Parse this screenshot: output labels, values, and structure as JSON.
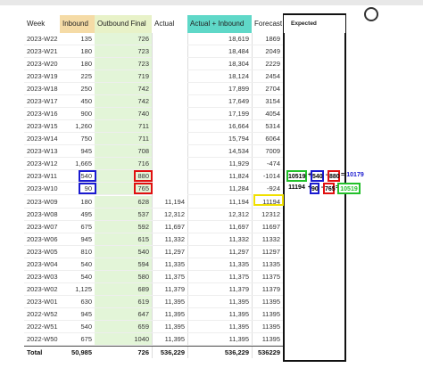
{
  "table": {
    "headers": [
      "Week",
      "Inbound",
      "Outbound Final",
      "Actual",
      "Actual + Inbound",
      "Forecast",
      "Expected"
    ],
    "rows": [
      [
        "2023-W22",
        "135",
        "726",
        null,
        "18,619",
        "1869"
      ],
      [
        "2023-W21",
        "180",
        "723",
        null,
        "18,484",
        "2049"
      ],
      [
        "2023-W20",
        "180",
        "723",
        null,
        "18,304",
        "2229"
      ],
      [
        "2023-W19",
        "225",
        "719",
        null,
        "18,124",
        "2454"
      ],
      [
        "2023-W18",
        "250",
        "742",
        null,
        "17,899",
        "2704"
      ],
      [
        "2023-W17",
        "450",
        "742",
        null,
        "17,649",
        "3154"
      ],
      [
        "2023-W16",
        "900",
        "740",
        null,
        "17,199",
        "4054"
      ],
      [
        "2023-W15",
        "1,260",
        "711",
        null,
        "16,664",
        "5314"
      ],
      [
        "2023-W14",
        "750",
        "711",
        null,
        "15,794",
        "6064"
      ],
      [
        "2023-W13",
        "945",
        "708",
        null,
        "14,534",
        "7009"
      ],
      [
        "2023-W12",
        "1,665",
        "716",
        null,
        "11,929",
        "-474"
      ],
      [
        "2023-W11",
        "540",
        "880",
        null,
        "11,824",
        "-1014"
      ],
      [
        "2023-W10",
        "90",
        "765",
        null,
        "11,284",
        "-924"
      ],
      [
        "2023-W09",
        "180",
        "628",
        "11,194",
        "11,194",
        "11194"
      ],
      [
        "2023-W08",
        "495",
        "537",
        "12,312",
        "12,312",
        "12312"
      ],
      [
        "2023-W07",
        "675",
        "592",
        "11,697",
        "11,697",
        "11697"
      ],
      [
        "2023-W06",
        "945",
        "615",
        "11,332",
        "11,332",
        "11332"
      ],
      [
        "2023-W05",
        "810",
        "540",
        "11,297",
        "11,297",
        "11297"
      ],
      [
        "2023-W04",
        "540",
        "594",
        "11,335",
        "11,335",
        "11335"
      ],
      [
        "2023-W03",
        "540",
        "580",
        "11,375",
        "11,375",
        "11375"
      ],
      [
        "2023-W02",
        "1,125",
        "689",
        "11,379",
        "11,379",
        "11379"
      ],
      [
        "2023-W01",
        "630",
        "619",
        "11,395",
        "11,395",
        "11395"
      ],
      [
        "2022-W52",
        "945",
        "647",
        "11,395",
        "11,395",
        "11395"
      ],
      [
        "2022-W51",
        "540",
        "659",
        "11,395",
        "11,395",
        "11395"
      ],
      [
        "2022-W50",
        "675",
        "1040",
        "11,395",
        "11,395",
        "11395"
      ]
    ],
    "total": [
      "Total",
      "50,985",
      "726",
      "536,229",
      "536,229",
      "536229"
    ]
  },
  "annotations": [
    [
      "10519",
      "+",
      "540",
      "-",
      "880",
      "=",
      "10179"
    ],
    [
      "11194",
      "+",
      "90",
      "-",
      "765",
      "=",
      "10519"
    ]
  ]
}
